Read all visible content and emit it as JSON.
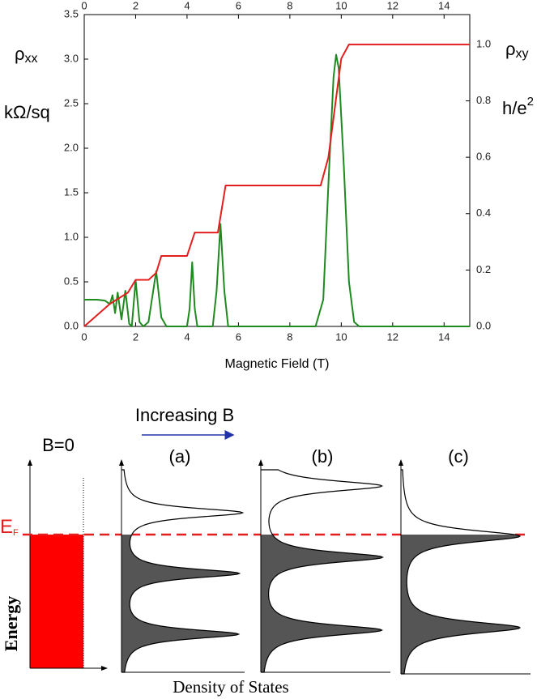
{
  "chart_data": {
    "type": "line",
    "xlabel": "Magnetic Field  (T)",
    "y_label": {
      "symbol": "ρ",
      "subscript": "xx",
      "unit": "kΩ/sq"
    },
    "y2_label": {
      "symbol": "ρ",
      "subscript": "xy",
      "unit": "h/e",
      "unit_superscript": "2"
    },
    "xlim": [
      0,
      15
    ],
    "xticks": [
      0,
      2,
      4,
      6,
      8,
      10,
      12,
      14
    ],
    "ylim": [
      0,
      3.5
    ],
    "yticks": [
      {
        "value": 0,
        "label": "0.0"
      },
      0.5,
      {
        "value": 1,
        "label": "1.0"
      },
      1.5,
      {
        "value": 2,
        "label": "2.0"
      },
      2.5,
      {
        "value": 3,
        "label": "3.0"
      },
      3.5
    ],
    "y2lim": [
      0,
      1.106
    ],
    "y2ticks": [
      {
        "value": 0,
        "label": "0.0"
      },
      0.2,
      0.4,
      0.6,
      0.8,
      {
        "value": 1,
        "label": "1.0"
      }
    ],
    "series": [
      {
        "name": "ρxx",
        "color": "#1f8a1f",
        "axis": "y",
        "x": [
          0,
          0.5,
          0.8,
          1.0,
          1.1,
          1.2,
          1.3,
          1.45,
          1.6,
          1.75,
          1.85,
          2.0,
          2.15,
          2.3,
          2.5,
          2.8,
          3.0,
          3.2,
          4.0,
          4.1,
          4.2,
          4.3,
          4.4,
          5.0,
          5.15,
          5.3,
          5.45,
          5.6,
          9.0,
          9.3,
          9.5,
          9.7,
          9.8,
          9.9,
          10.1,
          10.3,
          10.5,
          10.7,
          15
        ],
        "values": [
          0.3,
          0.3,
          0.29,
          0.25,
          0.35,
          0.15,
          0.38,
          0.08,
          0.4,
          0.03,
          0,
          0.52,
          0.05,
          0,
          0.05,
          0.62,
          0.1,
          0,
          0,
          0.2,
          0.72,
          0.2,
          0,
          0,
          0.4,
          1.15,
          0.4,
          0,
          0,
          0.3,
          1.6,
          2.8,
          3.05,
          2.9,
          1.8,
          0.5,
          0.05,
          0,
          0
        ]
      },
      {
        "name": "ρxy",
        "color": "#e41e1e",
        "axis": "y2",
        "x": [
          0,
          1.0,
          1.7,
          2.0,
          2.5,
          2.8,
          3.0,
          4.0,
          4.3,
          5.2,
          5.5,
          9.2,
          9.5,
          10.0,
          10.3,
          15
        ],
        "values": [
          0,
          0.08,
          0.12,
          0.165,
          0.165,
          0.19,
          0.25,
          0.25,
          0.333,
          0.333,
          0.5,
          0.5,
          0.6,
          0.95,
          1.0,
          1.0
        ]
      }
    ]
  },
  "diagram": {
    "increasing_label": "Increasing B",
    "b0_label": "B=0",
    "panels": [
      "(a)",
      "(b)",
      "(c)"
    ],
    "fermi_symbol": "E",
    "fermi_subscript": "F",
    "y_label": "Energy",
    "x_label": "Density of States"
  }
}
